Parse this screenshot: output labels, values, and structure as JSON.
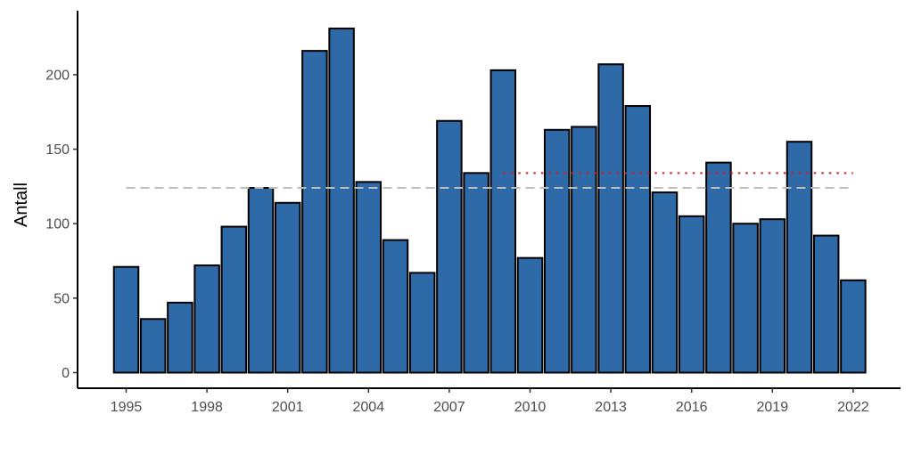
{
  "chart_data": {
    "type": "bar",
    "title": "",
    "xlabel": "",
    "ylabel": "Antall",
    "ylim": [
      0,
      240
    ],
    "yticks": [
      0,
      50,
      100,
      150,
      200
    ],
    "xticks": [
      1995,
      1998,
      2001,
      2004,
      2007,
      2010,
      2013,
      2016,
      2019,
      2022
    ],
    "grid": false,
    "legend": "none",
    "categories": [
      1995,
      1996,
      1997,
      1998,
      1999,
      2000,
      2001,
      2002,
      2003,
      2004,
      2005,
      2006,
      2007,
      2008,
      2009,
      2010,
      2011,
      2012,
      2013,
      2014,
      2015,
      2016,
      2017,
      2018,
      2019,
      2020,
      2021,
      2022
    ],
    "series": [
      {
        "values": [
          71,
          36,
          47,
          72,
          98,
          124,
          114,
          216,
          231,
          128,
          89,
          67,
          169,
          134,
          203,
          77,
          163,
          165,
          207,
          179,
          121,
          105,
          141,
          100,
          103,
          155,
          92,
          62
        ],
        "color": "#2e69a8"
      }
    ],
    "reference_lines": [
      {
        "style": "dashed",
        "color": "#bdbdbd",
        "y": 124,
        "x_from": 1995,
        "x_to": 2022
      },
      {
        "style": "dotted",
        "color": "#e31a1c",
        "y": 134,
        "x_from": 2009,
        "x_to": 2022
      }
    ]
  }
}
